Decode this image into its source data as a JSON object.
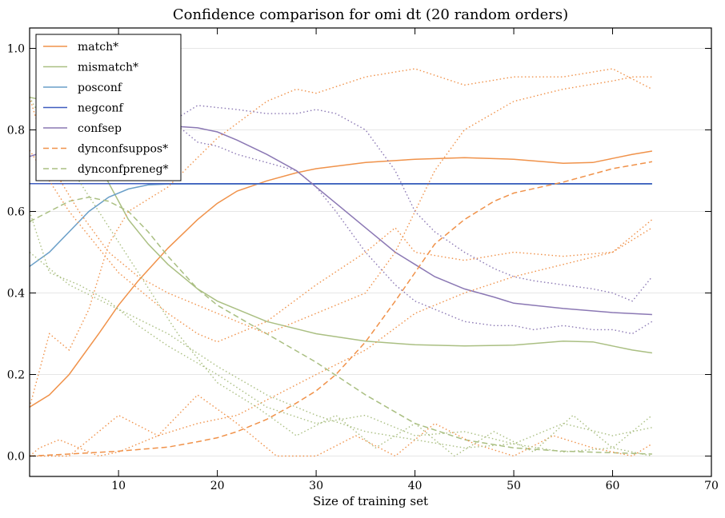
{
  "chart_data": {
    "type": "line",
    "title": "Confidence comparison for omi dt (20 random orders)",
    "xlabel": "Size of training set",
    "ylabel": "",
    "xlim": [
      1,
      70
    ],
    "ylim": [
      -0.05,
      1.05
    ],
    "xticks": [
      10,
      20,
      30,
      40,
      50,
      60,
      70
    ],
    "yticks": [
      0.0,
      0.2,
      0.4,
      0.6,
      0.8,
      1.0
    ],
    "ytick_labels": [
      "0.0",
      "0.2",
      "0.4",
      "0.6",
      "0.8",
      "1.0"
    ],
    "grid": "horizontal",
    "legend_position": "top-left",
    "series": [
      {
        "name": "match*",
        "color": "#f0924a",
        "dash": "solid",
        "x": [
          1,
          3,
          5,
          8,
          10,
          12,
          15,
          18,
          20,
          22,
          25,
          28,
          30,
          35,
          40,
          45,
          50,
          55,
          58,
          60,
          62,
          64
        ],
        "y": [
          0.12,
          0.15,
          0.2,
          0.3,
          0.37,
          0.43,
          0.51,
          0.58,
          0.62,
          0.65,
          0.675,
          0.695,
          0.705,
          0.72,
          0.728,
          0.732,
          0.728,
          0.718,
          0.72,
          0.73,
          0.74,
          0.748
        ]
      },
      {
        "name": "mismatch*",
        "color": "#aabf82",
        "dash": "solid",
        "x": [
          1,
          3,
          5,
          7,
          9,
          11,
          13,
          15,
          18,
          20,
          25,
          30,
          35,
          40,
          45,
          50,
          55,
          58,
          60,
          62,
          64
        ],
        "y": [
          0.88,
          0.87,
          0.84,
          0.76,
          0.67,
          0.58,
          0.52,
          0.47,
          0.41,
          0.38,
          0.33,
          0.3,
          0.282,
          0.273,
          0.27,
          0.272,
          0.282,
          0.28,
          0.27,
          0.26,
          0.253
        ]
      },
      {
        "name": "posconf",
        "color": "#6a9fc8",
        "dash": "solid",
        "x": [
          1,
          3,
          5,
          7,
          9,
          11,
          13,
          15,
          20,
          30,
          40,
          50,
          60,
          64
        ],
        "y": [
          0.465,
          0.5,
          0.55,
          0.6,
          0.635,
          0.655,
          0.665,
          0.667,
          0.667,
          0.667,
          0.667,
          0.667,
          0.667,
          0.667
        ]
      },
      {
        "name": "negconf",
        "color": "#3f5dbf",
        "dash": "solid",
        "x": [
          1,
          10,
          20,
          30,
          40,
          50,
          60,
          64
        ],
        "y": [
          0.668,
          0.668,
          0.668,
          0.668,
          0.668,
          0.668,
          0.668,
          0.668
        ]
      },
      {
        "name": "confsep",
        "color": "#8b78b4",
        "dash": "solid",
        "x": [
          1,
          3,
          5,
          8,
          10,
          12,
          15,
          18,
          20,
          22,
          25,
          28,
          30,
          32,
          35,
          38,
          40,
          42,
          45,
          48,
          50,
          55,
          60,
          64
        ],
        "y": [
          0.735,
          0.75,
          0.78,
          0.8,
          0.81,
          0.812,
          0.81,
          0.805,
          0.795,
          0.775,
          0.74,
          0.7,
          0.66,
          0.62,
          0.56,
          0.5,
          0.47,
          0.44,
          0.41,
          0.39,
          0.375,
          0.362,
          0.352,
          0.347
        ]
      },
      {
        "name": "dynconfsuppos*",
        "color": "#f0924a",
        "dash": "dashed",
        "x": [
          1,
          5,
          10,
          15,
          18,
          20,
          22,
          25,
          28,
          30,
          32,
          35,
          38,
          40,
          42,
          45,
          48,
          50,
          55,
          60,
          64
        ],
        "y": [
          0.0,
          0.005,
          0.012,
          0.022,
          0.035,
          0.045,
          0.06,
          0.09,
          0.13,
          0.16,
          0.2,
          0.28,
          0.38,
          0.45,
          0.52,
          0.58,
          0.625,
          0.645,
          0.672,
          0.705,
          0.722
        ]
      },
      {
        "name": "dynconfpreneg*",
        "color": "#aabf82",
        "dash": "dashed",
        "x": [
          1,
          3,
          5,
          7,
          9,
          11,
          13,
          15,
          18,
          20,
          25,
          30,
          35,
          40,
          45,
          50,
          55,
          60,
          64
        ],
        "y": [
          0.575,
          0.6,
          0.625,
          0.635,
          0.625,
          0.6,
          0.55,
          0.49,
          0.41,
          0.37,
          0.3,
          0.23,
          0.15,
          0.08,
          0.04,
          0.02,
          0.012,
          0.008,
          0.005
        ]
      },
      {
        "name": "",
        "color": "#f0924a",
        "dash": "dotted",
        "x": [
          1,
          3,
          6,
          9,
          12,
          15,
          20,
          25,
          30,
          35,
          38,
          40,
          42,
          45,
          50,
          55,
          60,
          62,
          64
        ],
        "y": [
          0.88,
          0.72,
          0.6,
          0.5,
          0.44,
          0.4,
          0.35,
          0.3,
          0.35,
          0.4,
          0.5,
          0.6,
          0.7,
          0.8,
          0.87,
          0.9,
          0.92,
          0.93,
          0.93
        ]
      },
      {
        "name": "",
        "color": "#f0924a",
        "dash": "dotted",
        "x": [
          1,
          3,
          5,
          7,
          9,
          11,
          15,
          20,
          25,
          28,
          30,
          35,
          40,
          45,
          50,
          55,
          60,
          64
        ],
        "y": [
          0.12,
          0.3,
          0.26,
          0.36,
          0.52,
          0.6,
          0.66,
          0.78,
          0.87,
          0.9,
          0.89,
          0.93,
          0.95,
          0.91,
          0.93,
          0.93,
          0.95,
          0.9
        ]
      },
      {
        "name": "",
        "color": "#f0924a",
        "dash": "dotted",
        "x": [
          1,
          2,
          4,
          6,
          8,
          10,
          14,
          18,
          22,
          26,
          30,
          35,
          40,
          45,
          50,
          55,
          60,
          64
        ],
        "y": [
          0.0,
          0.02,
          0.04,
          0.02,
          0.0,
          0.01,
          0.05,
          0.08,
          0.1,
          0.15,
          0.2,
          0.26,
          0.35,
          0.4,
          0.44,
          0.47,
          0.5,
          0.58
        ]
      },
      {
        "name": "",
        "color": "#f0924a",
        "dash": "dotted",
        "x": [
          1,
          5,
          10,
          15,
          18,
          20,
          25,
          30,
          35,
          38,
          40,
          45,
          50,
          55,
          60,
          64
        ],
        "y": [
          0.75,
          0.6,
          0.45,
          0.35,
          0.3,
          0.28,
          0.33,
          0.42,
          0.5,
          0.56,
          0.5,
          0.48,
          0.5,
          0.49,
          0.5,
          0.56
        ]
      },
      {
        "name": "",
        "color": "#f0924a",
        "dash": "dotted",
        "x": [
          1,
          5,
          10,
          14,
          18,
          22,
          26,
          30,
          34,
          38,
          42,
          46,
          50,
          54,
          58,
          62,
          64
        ],
        "y": [
          0.0,
          0.0,
          0.1,
          0.05,
          0.15,
          0.08,
          0.0,
          0.0,
          0.05,
          0.0,
          0.08,
          0.03,
          0.0,
          0.05,
          0.02,
          0.0,
          0.03
        ]
      },
      {
        "name": "",
        "color": "#aabf82",
        "dash": "dotted",
        "x": [
          1,
          3,
          6,
          9,
          12,
          15,
          20,
          25,
          30,
          35,
          40,
          45,
          50,
          55,
          60,
          64
        ],
        "y": [
          0.6,
          0.45,
          0.42,
          0.38,
          0.32,
          0.27,
          0.2,
          0.12,
          0.08,
          0.1,
          0.05,
          0.06,
          0.03,
          0.08,
          0.05,
          0.07
        ]
      },
      {
        "name": "",
        "color": "#aabf82",
        "dash": "dotted",
        "x": [
          1,
          4,
          8,
          12,
          16,
          20,
          24,
          28,
          32,
          36,
          40,
          44,
          48,
          52,
          56,
          60,
          64
        ],
        "y": [
          0.88,
          0.75,
          0.6,
          0.45,
          0.3,
          0.18,
          0.12,
          0.05,
          0.1,
          0.02,
          0.08,
          0.0,
          0.06,
          0.01,
          0.1,
          0.02,
          0.1
        ]
      },
      {
        "name": "",
        "color": "#aabf82",
        "dash": "dotted",
        "x": [
          1,
          5,
          10,
          15,
          20,
          25,
          30,
          35,
          40,
          45,
          50,
          55,
          60,
          64
        ],
        "y": [
          0.5,
          0.42,
          0.36,
          0.3,
          0.22,
          0.15,
          0.1,
          0.06,
          0.04,
          0.02,
          0.03,
          0.01,
          0.02,
          0.0
        ]
      },
      {
        "name": "",
        "color": "#8b78b4",
        "dash": "dotted",
        "x": [
          16,
          18,
          20,
          22,
          25,
          28,
          30,
          32,
          35,
          38,
          40,
          42,
          45,
          48,
          50,
          52,
          55,
          58,
          60,
          62,
          64
        ],
        "y": [
          0.83,
          0.86,
          0.855,
          0.85,
          0.84,
          0.84,
          0.85,
          0.84,
          0.8,
          0.7,
          0.6,
          0.55,
          0.5,
          0.46,
          0.44,
          0.43,
          0.42,
          0.41,
          0.4,
          0.38,
          0.44
        ]
      },
      {
        "name": "",
        "color": "#8b78b4",
        "dash": "dotted",
        "x": [
          16,
          18,
          20,
          22,
          25,
          28,
          30,
          32,
          35,
          38,
          40,
          42,
          45,
          48,
          50,
          52,
          55,
          58,
          60,
          62,
          64
        ],
        "y": [
          0.81,
          0.77,
          0.76,
          0.74,
          0.72,
          0.7,
          0.66,
          0.6,
          0.5,
          0.42,
          0.38,
          0.36,
          0.33,
          0.32,
          0.32,
          0.31,
          0.32,
          0.31,
          0.31,
          0.3,
          0.33
        ]
      }
    ]
  }
}
